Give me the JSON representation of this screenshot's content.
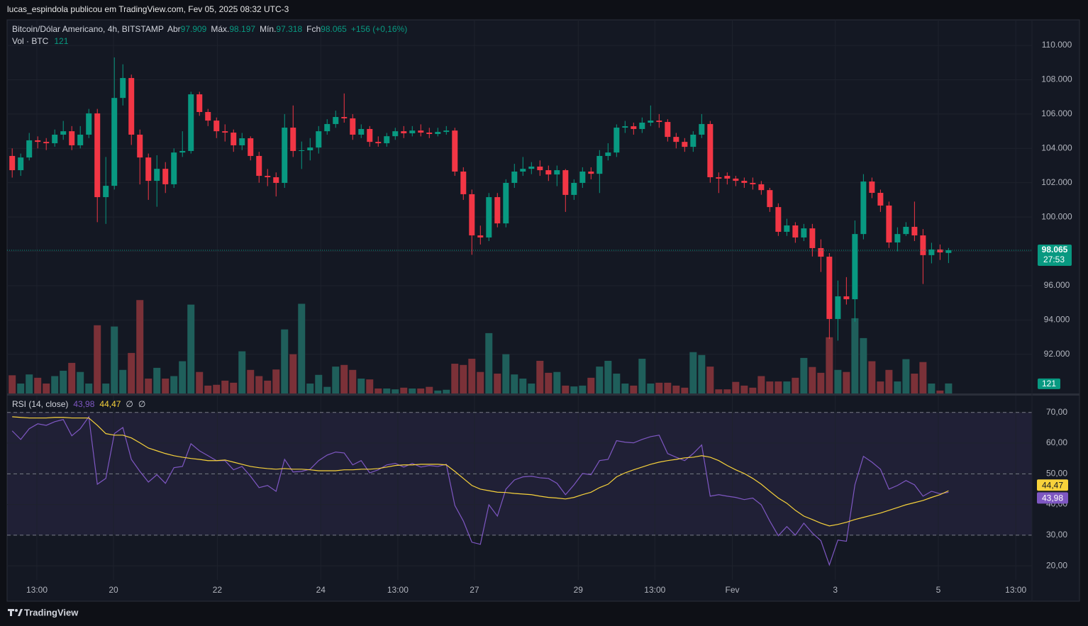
{
  "header": "lucas_espindola publicou em TradingView.com, Fev 05, 2025 08:32 UTC-3",
  "footer": "TradingView",
  "chart_data": [
    {
      "type": "candlestick",
      "title": "Bitcoin/Dólar Americano, 4h, BITSTAMP",
      "legend": [
        {
          "label": "Abr",
          "value": "97.909"
        },
        {
          "label": "Máx.",
          "value": "98.197"
        },
        {
          "label": "Mín.",
          "value": "97.318"
        },
        {
          "label": "Fch",
          "value": "98.065"
        }
      ],
      "change": "+156 (+0,16%)",
      "last_price_label": "98.065",
      "countdown": "27:53",
      "up_color": "#089981",
      "down_color": "#f23645",
      "open": [
        103560,
        102730,
        103470,
        104470,
        104380,
        104300,
        104800,
        105000,
        104180,
        104800,
        106040,
        101160,
        101820,
        106940,
        108100,
        104800,
        103470,
        102110,
        102810,
        101910,
        103760,
        103850,
        107150,
        106120,
        105620,
        105000,
        104920,
        104180,
        104590,
        103560,
        102400,
        102320,
        101990,
        105210,
        103850,
        103890,
        104050,
        105000,
        105420,
        105830,
        105750,
        104800,
        105130,
        104380,
        104300,
        104710,
        105000,
        104880,
        105040,
        104920,
        104840,
        104960,
        105040,
        102650,
        101330,
        98930,
        98810,
        101160,
        99630,
        101990,
        102650,
        102810,
        102940,
        102730,
        102480,
        102730,
        101290,
        101990,
        102650,
        102520,
        103560,
        103760,
        105210,
        105290,
        105130,
        105500,
        105620,
        105540,
        104670,
        104380,
        104090,
        104800,
        105420,
        102320,
        102400,
        102240,
        102110,
        101990,
        101910,
        101570,
        100580,
        99140,
        99510,
        98810,
        99340,
        98190,
        97690,
        94060,
        95380,
        95210,
        99010,
        102070,
        101410,
        100670,
        98520,
        99010,
        99430,
        98930,
        97780,
        98110,
        97909
      ],
      "high": [
        104000,
        103700,
        104900,
        104700,
        104600,
        105100,
        105600,
        105300,
        105300,
        106300,
        106300,
        103500,
        109300,
        108900,
        108300,
        105100,
        103700,
        103600,
        103200,
        104000,
        105000,
        107300,
        107300,
        106300,
        105800,
        105400,
        105100,
        104900,
        104700,
        103800,
        102800,
        102600,
        106000,
        106500,
        104400,
        104600,
        105300,
        105700,
        106200,
        107200,
        106000,
        105400,
        105300,
        104700,
        104900,
        105200,
        105300,
        105300,
        105400,
        105200,
        105200,
        105300,
        105200,
        102900,
        101600,
        99500,
        101400,
        101400,
        102200,
        103100,
        103500,
        103200,
        103300,
        103000,
        103000,
        102800,
        102200,
        102900,
        102900,
        103900,
        104300,
        105400,
        105600,
        105500,
        105800,
        106500,
        106000,
        105700,
        104900,
        104600,
        105000,
        106000,
        105600,
        102600,
        102600,
        102400,
        102300,
        102300,
        102100,
        101700,
        100800,
        99900,
        99700,
        99600,
        99600,
        98700,
        97900,
        96300,
        96500,
        99800,
        102500,
        102300,
        101600,
        100900,
        99400,
        99700,
        100900,
        99300,
        98500,
        98400,
        98197
      ],
      "low": [
        102300,
        102400,
        103300,
        104000,
        103900,
        104100,
        104500,
        103900,
        104000,
        104600,
        99700,
        99600,
        101600,
        106500,
        104200,
        101900,
        101000,
        100600,
        101400,
        101700,
        103500,
        103700,
        105900,
        105300,
        104600,
        104400,
        103800,
        103900,
        103300,
        102000,
        101800,
        101200,
        101700,
        103500,
        102800,
        103300,
        103700,
        104800,
        105200,
        105500,
        104500,
        104600,
        104100,
        104100,
        104100,
        104500,
        104600,
        104700,
        104700,
        104600,
        104700,
        104800,
        102400,
        101000,
        97800,
        98400,
        98600,
        99400,
        99400,
        101700,
        102400,
        102500,
        102400,
        102100,
        101800,
        100300,
        101000,
        101700,
        102200,
        101400,
        103300,
        103500,
        104900,
        104800,
        104900,
        105300,
        105200,
        104400,
        104000,
        103800,
        103800,
        104600,
        102000,
        101400,
        101900,
        101800,
        101700,
        101600,
        101300,
        100300,
        98900,
        98900,
        98500,
        98600,
        97700,
        96800,
        92900,
        92800,
        94900,
        93900,
        98700,
        101100,
        100300,
        98200,
        98000,
        98900,
        98600,
        96100,
        97300,
        97500,
        97318
      ],
      "close": [
        102730,
        103470,
        104470,
        104380,
        104300,
        104800,
        105000,
        104180,
        104800,
        106040,
        101160,
        101820,
        106940,
        108100,
        104800,
        103470,
        102110,
        102810,
        101910,
        103760,
        103850,
        107150,
        106120,
        105620,
        105000,
        104920,
        104180,
        104590,
        103560,
        102400,
        102320,
        101990,
        105210,
        103850,
        103890,
        104050,
        105000,
        105420,
        105830,
        105750,
        104800,
        105130,
        104380,
        104300,
        104710,
        105000,
        104880,
        105040,
        104920,
        104840,
        104960,
        105040,
        102650,
        101330,
        98930,
        98810,
        101160,
        99630,
        101990,
        102650,
        102810,
        102940,
        102730,
        102480,
        102730,
        101290,
        101990,
        102650,
        102520,
        103560,
        103760,
        105210,
        105290,
        105130,
        105500,
        105620,
        105540,
        104670,
        104380,
        104090,
        104800,
        105420,
        102320,
        102240,
        102240,
        102110,
        101990,
        101910,
        101570,
        100580,
        99140,
        99510,
        98810,
        99340,
        98190,
        97690,
        94060,
        95380,
        95210,
        99010,
        102070,
        101410,
        100670,
        98520,
        99010,
        99430,
        98930,
        97780,
        98110,
        97940,
        98065
      ],
      "xlim": [
        -0.6,
        119.8
      ],
      "xticks": [
        {
          "value": 2.9,
          "label": "13:00"
        },
        {
          "value": 11.9,
          "label": "20"
        },
        {
          "value": 24.1,
          "label": "22"
        },
        {
          "value": 36.25,
          "label": "24"
        },
        {
          "value": 45.3,
          "label": "13:00"
        },
        {
          "value": 54.3,
          "label": "27"
        },
        {
          "value": 66.5,
          "label": "29"
        },
        {
          "value": 75.5,
          "label": "13:00"
        },
        {
          "value": 84.6,
          "label": "Fev"
        },
        {
          "value": 96.7,
          "label": "3"
        },
        {
          "value": 108.8,
          "label": "5"
        },
        {
          "value": 117.9,
          "label": "13:00"
        }
      ],
      "ylim": [
        89720,
        111490
      ],
      "yticks": [
        {
          "value": 92000,
          "label": "92.000"
        },
        {
          "value": 94000,
          "label": "94.000"
        },
        {
          "value": 96000,
          "label": "96.000"
        },
        {
          "value": 98000,
          "label": "98.000"
        },
        {
          "value": 100000,
          "label": "100.000"
        },
        {
          "value": 102000,
          "label": "102.000"
        },
        {
          "value": 104000,
          "label": "104.000"
        },
        {
          "value": 106000,
          "label": "106.000"
        },
        {
          "value": 108000,
          "label": "108.000"
        },
        {
          "value": 110000,
          "label": "110.000"
        }
      ],
      "grid": true
    },
    {
      "type": "volume",
      "title": "Vol · BTC",
      "value_label": "121",
      "up_color": "#1f5f5b",
      "down_color": "#7b3138",
      "values": [
        220,
        120,
        230,
        190,
        120,
        210,
        275,
        370,
        260,
        120,
        825,
        120,
        810,
        285,
        490,
        1130,
        180,
        310,
        180,
        210,
        390,
        1075,
        260,
        95,
        105,
        155,
        130,
        510,
        285,
        210,
        155,
        290,
        775,
        475,
        1085,
        120,
        225,
        80,
        325,
        345,
        285,
        180,
        170,
        60,
        60,
        50,
        70,
        60,
        60,
        80,
        35,
        45,
        360,
        345,
        420,
        260,
        730,
        240,
        475,
        230,
        180,
        120,
        395,
        250,
        260,
        95,
        85,
        95,
        190,
        325,
        395,
        240,
        120,
        95,
        420,
        120,
        130,
        130,
        95,
        70,
        500,
        465,
        325,
        50,
        50,
        140,
        95,
        70,
        210,
        145,
        145,
        145,
        190,
        430,
        320,
        250,
        680,
        285,
        260,
        910,
        670,
        390,
        145,
        285,
        145,
        415,
        240,
        380,
        120,
        35,
        121
      ]
    },
    {
      "type": "line",
      "title": "RSI (14, close)",
      "symbols": [
        "∅",
        "∅"
      ],
      "ylim": [
        15.4,
        75.5
      ],
      "yticks": [
        {
          "value": 20,
          "label": "20,00"
        },
        {
          "value": 30,
          "label": "30,00"
        },
        {
          "value": 40,
          "label": "40,00"
        },
        {
          "value": 50,
          "label": "50,00"
        },
        {
          "value": 60,
          "label": "60,00"
        },
        {
          "value": 70,
          "label": "70,00"
        }
      ],
      "hlines": [
        70,
        50,
        30
      ],
      "band": [
        30,
        70
      ],
      "series": [
        {
          "color": "#7e57c2",
          "last_label": "43,98",
          "values": [
            64.0,
            61.2,
            64.7,
            66.3,
            65.8,
            67.0,
            67.7,
            62.4,
            64.7,
            68.6,
            46.6,
            48.5,
            63.1,
            65.1,
            54.7,
            50.8,
            47.3,
            49.7,
            46.9,
            52.0,
            52.4,
            59.8,
            57.5,
            55.9,
            54.3,
            54.3,
            51.3,
            52.4,
            49.2,
            45.5,
            46.2,
            44.3,
            54.7,
            50.6,
            50.8,
            51.5,
            54.3,
            56.1,
            57.1,
            56.8,
            52.9,
            54.3,
            50.3,
            51.3,
            52.9,
            53.4,
            52.2,
            53.4,
            52.2,
            52.7,
            52.4,
            53.1,
            39.7,
            34.6,
            27.7,
            27.0,
            39.9,
            36.2,
            45.0,
            48.0,
            49.0,
            49.2,
            48.7,
            48.5,
            46.9,
            43.2,
            46.4,
            50.1,
            49.7,
            54.3,
            54.7,
            60.8,
            60.3,
            60.1,
            61.2,
            62.1,
            62.6,
            56.6,
            55.4,
            54.3,
            56.6,
            59.4,
            42.7,
            43.2,
            42.7,
            42.3,
            41.6,
            42.1,
            39.9,
            34.6,
            29.8,
            32.8,
            30.0,
            33.9,
            30.7,
            28.2,
            20.3,
            28.4,
            28.0,
            46.4,
            55.7,
            53.8,
            51.5,
            45.0,
            46.2,
            47.8,
            46.4,
            42.7,
            44.3,
            43.5,
            43.98
          ]
        },
        {
          "color": "#f7d23b",
          "last_label": "44,47",
          "values": [
            68.6,
            68.4,
            68.2,
            68.2,
            68.2,
            68.4,
            68.4,
            68.2,
            68.2,
            68.2,
            65.8,
            63.1,
            62.6,
            62.6,
            61.7,
            60.1,
            58.4,
            57.5,
            56.6,
            55.9,
            55.4,
            55.0,
            54.7,
            54.3,
            54.3,
            54.5,
            53.8,
            53.1,
            52.4,
            52.0,
            51.7,
            51.5,
            51.7,
            51.5,
            51.5,
            51.3,
            51.0,
            51.0,
            51.0,
            51.3,
            51.3,
            51.5,
            51.5,
            51.7,
            52.2,
            52.7,
            52.9,
            52.9,
            53.1,
            53.1,
            53.1,
            52.9,
            50.8,
            48.5,
            46.2,
            45.0,
            44.5,
            44.0,
            43.9,
            43.6,
            43.4,
            43.2,
            42.7,
            42.3,
            42.1,
            41.8,
            42.3,
            43.2,
            44.0,
            45.5,
            46.6,
            49.0,
            50.3,
            51.3,
            52.2,
            53.1,
            53.8,
            54.3,
            54.7,
            55.2,
            55.4,
            55.9,
            55.4,
            54.3,
            52.7,
            51.3,
            50.1,
            48.5,
            46.6,
            44.3,
            42.1,
            40.4,
            38.1,
            36.2,
            35.1,
            33.9,
            33.0,
            33.5,
            34.2,
            35.1,
            35.8,
            36.5,
            37.2,
            38.1,
            39.0,
            39.9,
            40.6,
            41.3,
            42.3,
            43.2,
            44.47
          ]
        }
      ]
    }
  ]
}
